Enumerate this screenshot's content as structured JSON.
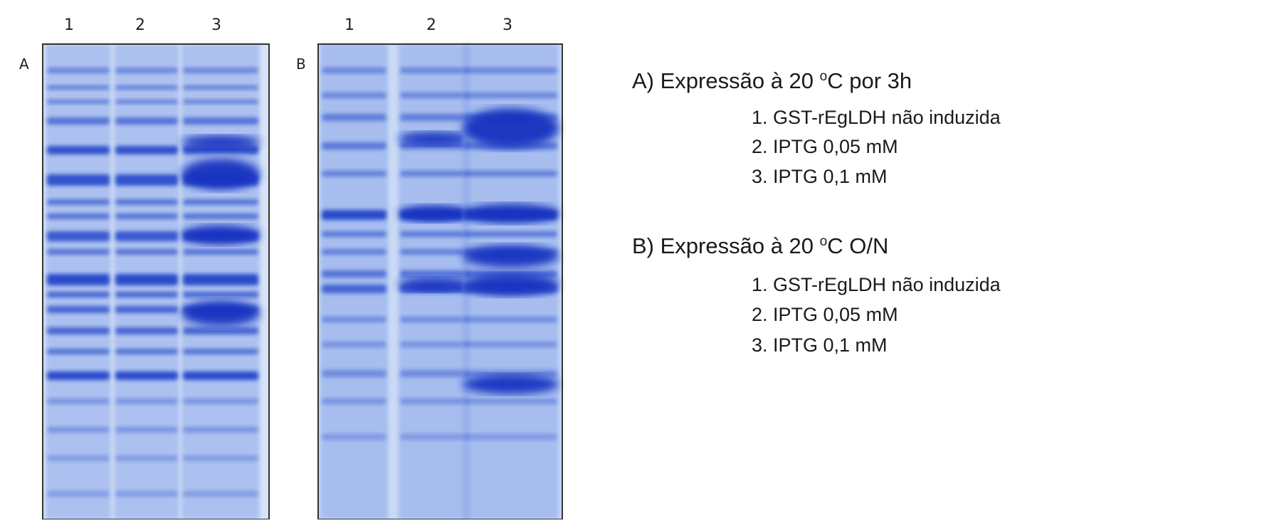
{
  "gels": [
    {
      "label": "A",
      "lanes": [
        "1",
        "2",
        "3"
      ]
    },
    {
      "label": "B",
      "lanes": [
        "1",
        "2",
        "3"
      ]
    }
  ],
  "legend": [
    {
      "heading": "A) Expressão à 20 ",
      "degree": "o",
      "heading_rest": "C por 3h",
      "items": [
        "1. GST-rEgLDH não induzida",
        "2. IPTG 0,05 mM",
        "3. IPTG 0,1 mM"
      ]
    },
    {
      "heading": "B) Expressão à 20 ",
      "degree": "o",
      "heading_rest": "C O/N",
      "items": [
        "1. GST-rEgLDH não induzida",
        "2. IPTG 0,05 mM",
        "3. IPTG 0,1 mM"
      ]
    }
  ]
}
